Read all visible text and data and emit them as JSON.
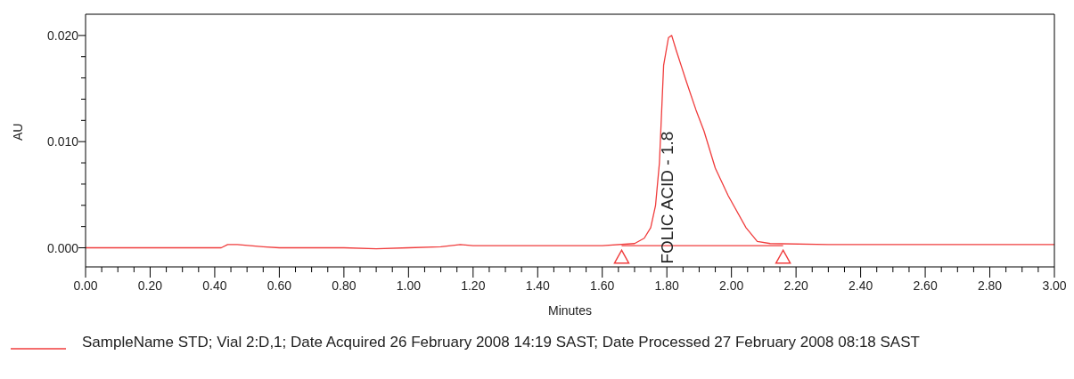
{
  "chart_data": {
    "type": "line",
    "xlabel": "Minutes",
    "ylabel": "AU",
    "legend": "bottom",
    "xlim": [
      0,
      3
    ],
    "ylim": [
      -0.0018,
      0.022
    ],
    "xticks": [
      {
        "value": 0,
        "label": "0.00"
      },
      {
        "value": 0.05,
        "label": null
      },
      {
        "value": 0.1,
        "label": null
      },
      {
        "value": 0.15,
        "label": null
      },
      {
        "value": 0.2,
        "label": "0.20"
      },
      {
        "value": 0.25,
        "label": null
      },
      {
        "value": 0.3,
        "label": null
      },
      {
        "value": 0.35,
        "label": null
      },
      {
        "value": 0.4,
        "label": "0.40"
      },
      {
        "value": 0.45,
        "label": null
      },
      {
        "value": 0.5,
        "label": null
      },
      {
        "value": 0.55,
        "label": null
      },
      {
        "value": 0.6,
        "label": "0.60"
      },
      {
        "value": 0.65,
        "label": null
      },
      {
        "value": 0.7,
        "label": null
      },
      {
        "value": 0.75,
        "label": null
      },
      {
        "value": 0.8,
        "label": "0.80"
      },
      {
        "value": 0.85,
        "label": null
      },
      {
        "value": 0.9,
        "label": null
      },
      {
        "value": 0.95,
        "label": null
      },
      {
        "value": 1,
        "label": "1.00"
      },
      {
        "value": 1.05,
        "label": null
      },
      {
        "value": 1.1,
        "label": null
      },
      {
        "value": 1.15,
        "label": null
      },
      {
        "value": 1.2,
        "label": "1.20"
      },
      {
        "value": 1.25,
        "label": null
      },
      {
        "value": 1.3,
        "label": null
      },
      {
        "value": 1.35,
        "label": null
      },
      {
        "value": 1.4,
        "label": "1.40"
      },
      {
        "value": 1.45,
        "label": null
      },
      {
        "value": 1.5,
        "label": null
      },
      {
        "value": 1.55,
        "label": null
      },
      {
        "value": 1.6,
        "label": "1.60"
      },
      {
        "value": 1.65,
        "label": null
      },
      {
        "value": 1.7,
        "label": null
      },
      {
        "value": 1.75,
        "label": null
      },
      {
        "value": 1.8,
        "label": "1.80"
      },
      {
        "value": 1.85,
        "label": null
      },
      {
        "value": 1.9,
        "label": null
      },
      {
        "value": 1.95,
        "label": null
      },
      {
        "value": 2,
        "label": "2.00"
      },
      {
        "value": 2.05,
        "label": null
      },
      {
        "value": 2.1,
        "label": null
      },
      {
        "value": 2.15,
        "label": null
      },
      {
        "value": 2.2,
        "label": "2.20"
      },
      {
        "value": 2.25,
        "label": null
      },
      {
        "value": 2.3,
        "label": null
      },
      {
        "value": 2.35,
        "label": null
      },
      {
        "value": 2.4,
        "label": "2.40"
      },
      {
        "value": 2.45,
        "label": null
      },
      {
        "value": 2.5,
        "label": null
      },
      {
        "value": 2.55,
        "label": null
      },
      {
        "value": 2.6,
        "label": "2.60"
      },
      {
        "value": 2.65,
        "label": null
      },
      {
        "value": 2.7,
        "label": null
      },
      {
        "value": 2.75,
        "label": null
      },
      {
        "value": 2.8,
        "label": "2.80"
      },
      {
        "value": 2.85,
        "label": null
      },
      {
        "value": 2.9,
        "label": null
      },
      {
        "value": 2.95,
        "label": null
      },
      {
        "value": 3,
        "label": "3.00"
      }
    ],
    "yticks": [
      {
        "value": 0,
        "label": "0.000"
      },
      {
        "value": 0.002,
        "label": null
      },
      {
        "value": 0.004,
        "label": null
      },
      {
        "value": 0.006,
        "label": null
      },
      {
        "value": 0.008,
        "label": null
      },
      {
        "value": 0.01,
        "label": "0.010"
      },
      {
        "value": 0.012,
        "label": null
      },
      {
        "value": 0.014,
        "label": null
      },
      {
        "value": 0.016,
        "label": null
      },
      {
        "value": 0.018,
        "label": null
      },
      {
        "value": 0.02,
        "label": "0.020"
      }
    ],
    "annotations": [
      {
        "text": "FOLIC ACID - 1.8",
        "x": 1.8,
        "y": 0
      }
    ],
    "series": [
      {
        "name": "SampleName STD; Vial 2:D,1; Date Acquired 26 February 2008 14:19 SAST; Date Processed 27 February 2008 08:18 SAST",
        "color": "#f03c3c",
        "marker": "none",
        "x": [
          0,
          0.2,
          0.42,
          0.44,
          0.47,
          0.55,
          0.6,
          0.8,
          0.9,
          1.0,
          1.1,
          1.16,
          1.2,
          1.4,
          1.6,
          1.7,
          1.73,
          1.75,
          1.765,
          1.777,
          1.79,
          1.805,
          1.815,
          1.83,
          1.86,
          1.89,
          1.915,
          1.95,
          1.99,
          2.045,
          2.08,
          2.12,
          2.3,
          2.6,
          3.0
        ],
        "values": [
          0,
          0,
          0,
          0.0003,
          0.0003,
          0.0001,
          0,
          0,
          -0.0001,
          0,
          0.0001,
          0.0003,
          0.0002,
          0.0002,
          0.0002,
          0.0004,
          0.0009,
          0.0019,
          0.004,
          0.008,
          0.0172,
          0.0198,
          0.02,
          0.0185,
          0.0157,
          0.013,
          0.011,
          0.0075,
          0.0049,
          0.0019,
          0.0006,
          0.0004,
          0.0003,
          0.0003,
          0.0003
        ]
      },
      {
        "color": "#f03c3c",
        "marker": "none",
        "x": [
          1.66,
          2.16
        ],
        "values": [
          0.0002,
          0.0002
        ]
      },
      {
        "type": "scatter",
        "color": "#f03c3c",
        "marker": "triangle",
        "x": [
          1.66,
          2.16
        ],
        "values": [
          -0.0009,
          -0.0009
        ]
      }
    ]
  }
}
